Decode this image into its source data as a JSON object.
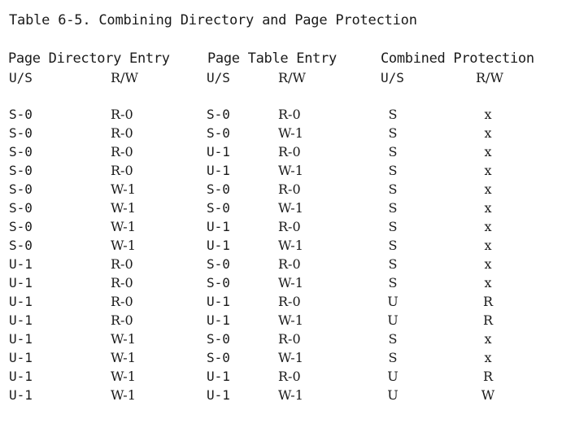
{
  "caption": "Table 6-5. Combining Directory and Page Protection",
  "groups": {
    "page_directory_entry": "Page Directory Entry",
    "page_table_entry": "Page Table Entry",
    "combined_protection": "Combined Protection"
  },
  "subheaders": {
    "pde_us": "U/S",
    "pde_rw": "R/W",
    "pte_us": "U/S",
    "pte_rw": "R/W",
    "comb_us": "U/S",
    "comb_rw": "R/W"
  },
  "rows": [
    [
      "S-0",
      "R-0",
      "S-0",
      "R-0",
      "S",
      "x"
    ],
    [
      "S-0",
      "R-0",
      "S-0",
      "W-1",
      "S",
      "x"
    ],
    [
      "S-0",
      "R-0",
      "U-1",
      "R-0",
      "S",
      "x"
    ],
    [
      "S-0",
      "R-0",
      "U-1",
      "W-1",
      "S",
      "x"
    ],
    [
      "S-0",
      "W-1",
      "S-0",
      "R-0",
      "S",
      "x"
    ],
    [
      "S-0",
      "W-1",
      "S-0",
      "W-1",
      "S",
      "x"
    ],
    [
      "S-0",
      "W-1",
      "U-1",
      "R-0",
      "S",
      "x"
    ],
    [
      "S-0",
      "W-1",
      "U-1",
      "W-1",
      "S",
      "x"
    ],
    [
      "U-1",
      "R-0",
      "S-0",
      "R-0",
      "S",
      "x"
    ],
    [
      "U-1",
      "R-0",
      "S-0",
      "W-1",
      "S",
      "x"
    ],
    [
      "U-1",
      "R-0",
      "U-1",
      "R-0",
      "U",
      "R"
    ],
    [
      "U-1",
      "R-0",
      "U-1",
      "W-1",
      "U",
      "R"
    ],
    [
      "U-1",
      "W-1",
      "S-0",
      "R-0",
      "S",
      "x"
    ],
    [
      "U-1",
      "W-1",
      "S-0",
      "W-1",
      "S",
      "x"
    ],
    [
      "U-1",
      "W-1",
      "U-1",
      "R-0",
      "U",
      "R"
    ],
    [
      "U-1",
      "W-1",
      "U-1",
      "W-1",
      "U",
      "W"
    ]
  ]
}
